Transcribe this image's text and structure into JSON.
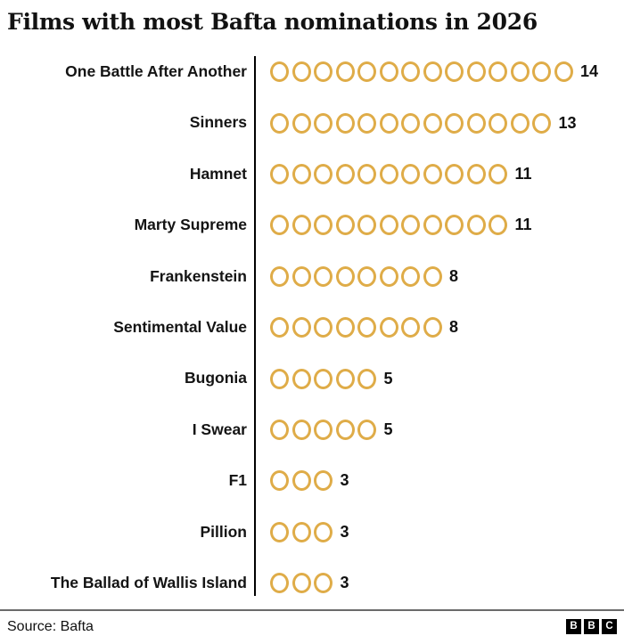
{
  "title": "Films with most Bafta nominations in 2026",
  "chart_data": {
    "type": "bar",
    "style": "pictogram-circle-units",
    "title": "Films with most Bafta nominations in 2026",
    "categories": [
      "One Battle After Another",
      "Sinners",
      "Hamnet",
      "Marty Supreme",
      "Frankenstein",
      "Sentimental Value",
      "Bugonia",
      "I Swear",
      "F1",
      "Pillion",
      "The Ballad of Wallis Island"
    ],
    "values": [
      14,
      13,
      11,
      11,
      8,
      8,
      5,
      5,
      3,
      3,
      3
    ],
    "xlabel": "",
    "ylabel": "",
    "orientation": "horizontal",
    "grid": false,
    "legend": false,
    "value_labels_shown": true,
    "marker_color": "#DFAC48",
    "axis_color": "#000000",
    "text_color": "#141414"
  },
  "footer": {
    "source": "Source: Bafta",
    "logo_letters": [
      "B",
      "B",
      "C"
    ]
  }
}
